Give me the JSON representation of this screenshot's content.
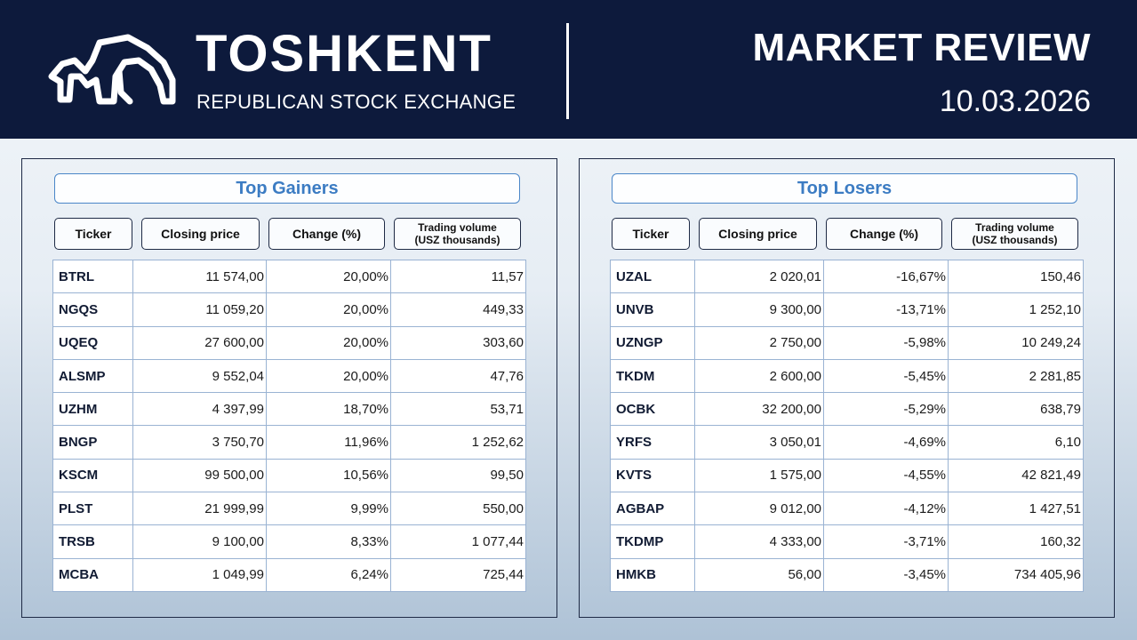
{
  "header": {
    "brand_title": "TOSHKENT",
    "brand_subtitle": "REPUBLICAN STOCK EXCHANGE",
    "review_title": "MARKET REVIEW",
    "date": "10.03.2026",
    "logo_icon": "toshkent-exchange-logo-icon"
  },
  "colors": {
    "header_bg": "#0d1a3c",
    "accent_blue": "#3c7cc3",
    "positive": "#1ea34a",
    "negative": "#e2261f"
  },
  "columns": {
    "ticker": "Ticker",
    "closing_price": "Closing price",
    "change": "Change (%)",
    "volume_line1": "Trading volume",
    "volume_line2": "(USZ thousands)"
  },
  "gainers": {
    "title": "Top Gainers",
    "rows": [
      {
        "ticker": "BTRL",
        "price": "11 574,00",
        "change": "20,00%",
        "volume": "11,57"
      },
      {
        "ticker": "NGQS",
        "price": "11 059,20",
        "change": "20,00%",
        "volume": "449,33"
      },
      {
        "ticker": "UQEQ",
        "price": "27 600,00",
        "change": "20,00%",
        "volume": "303,60"
      },
      {
        "ticker": "ALSMP",
        "price": "9 552,04",
        "change": "20,00%",
        "volume": "47,76"
      },
      {
        "ticker": "UZHM",
        "price": "4 397,99",
        "change": "18,70%",
        "volume": "53,71"
      },
      {
        "ticker": "BNGP",
        "price": "3 750,70",
        "change": "11,96%",
        "volume": "1 252,62"
      },
      {
        "ticker": "KSCM",
        "price": "99 500,00",
        "change": "10,56%",
        "volume": "99,50"
      },
      {
        "ticker": "PLST",
        "price": "21 999,99",
        "change": "9,99%",
        "volume": "550,00"
      },
      {
        "ticker": "TRSB",
        "price": "9 100,00",
        "change": "8,33%",
        "volume": "1 077,44"
      },
      {
        "ticker": "MCBA",
        "price": "1 049,99",
        "change": "6,24%",
        "volume": "725,44"
      }
    ]
  },
  "losers": {
    "title": "Top Losers",
    "rows": [
      {
        "ticker": "UZAL",
        "price": "2 020,01",
        "change": "-16,67%",
        "volume": "150,46"
      },
      {
        "ticker": "UNVB",
        "price": "9 300,00",
        "change": "-13,71%",
        "volume": "1 252,10"
      },
      {
        "ticker": "UZNGP",
        "price": "2 750,00",
        "change": "-5,98%",
        "volume": "10 249,24"
      },
      {
        "ticker": "TKDM",
        "price": "2 600,00",
        "change": "-5,45%",
        "volume": "2 281,85"
      },
      {
        "ticker": "OCBK",
        "price": "32 200,00",
        "change": "-5,29%",
        "volume": "638,79"
      },
      {
        "ticker": "YRFS",
        "price": "3 050,01",
        "change": "-4,69%",
        "volume": "6,10"
      },
      {
        "ticker": "KVTS",
        "price": "1 575,00",
        "change": "-4,55%",
        "volume": "42 821,49"
      },
      {
        "ticker": "AGBAP",
        "price": "9 012,00",
        "change": "-4,12%",
        "volume": "1 427,51"
      },
      {
        "ticker": "TKDMP",
        "price": "4 333,00",
        "change": "-3,71%",
        "volume": "160,32"
      },
      {
        "ticker": "HMKB",
        "price": "56,00",
        "change": "-3,45%",
        "volume": "734 405,96"
      }
    ]
  }
}
